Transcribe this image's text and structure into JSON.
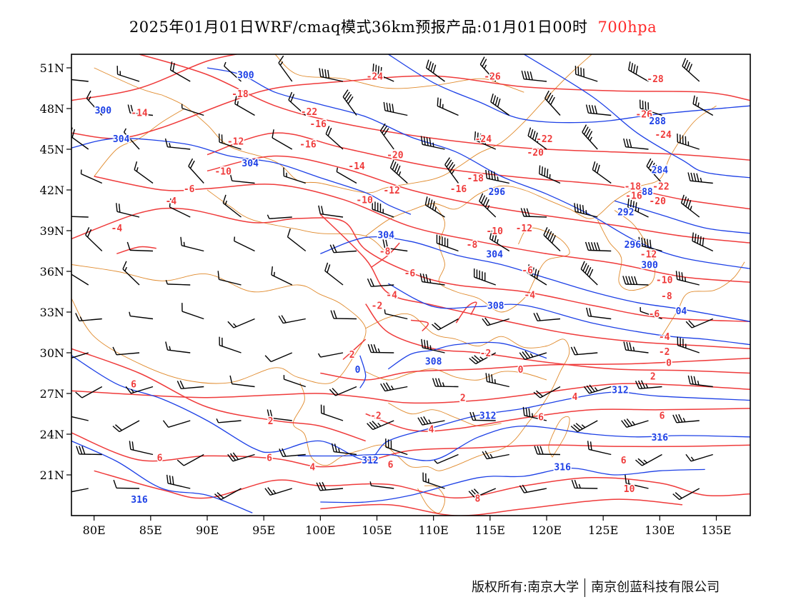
{
  "title": {
    "main": "2025年01月01日WRF/cmaq模式36km预报产品:01月01日00时",
    "level": "700hpa"
  },
  "colors": {
    "temperature": "#ef3b3b",
    "height": "#1d40e6",
    "border": "#e08a2c",
    "wind": "#000000"
  },
  "axes": {
    "lon_labels": [
      "80E",
      "85E",
      "90E",
      "95E",
      "100E",
      "105E",
      "110E",
      "115E",
      "120E",
      "125E",
      "130E",
      "135E"
    ],
    "lat_labels": [
      "51N",
      "48N",
      "45N",
      "42N",
      "39N",
      "36N",
      "33N",
      "30N",
      "27N",
      "24N",
      "21N"
    ]
  },
  "temperature_labels": [
    {
      "text": "-24",
      "lon": 104.8,
      "lat": 50.4
    },
    {
      "text": "-26",
      "lon": 115.2,
      "lat": 50.4
    },
    {
      "text": "-28",
      "lon": 129.6,
      "lat": 50.2
    },
    {
      "text": "-18",
      "lon": 92.9,
      "lat": 49.1
    },
    {
      "text": "-14",
      "lon": 84.0,
      "lat": 47.7
    },
    {
      "text": "-22",
      "lon": 99.0,
      "lat": 47.8
    },
    {
      "text": "-16",
      "lon": 99.8,
      "lat": 46.9
    },
    {
      "text": "-26",
      "lon": 128.6,
      "lat": 47.6
    },
    {
      "text": "-24",
      "lon": 130.3,
      "lat": 46.1
    },
    {
      "text": "-12",
      "lon": 92.5,
      "lat": 45.6
    },
    {
      "text": "-16",
      "lon": 98.9,
      "lat": 45.4
    },
    {
      "text": "-20",
      "lon": 106.6,
      "lat": 44.6
    },
    {
      "text": "-24",
      "lon": 114.4,
      "lat": 45.8
    },
    {
      "text": "-22",
      "lon": 119.8,
      "lat": 45.8
    },
    {
      "text": "-20",
      "lon": 119.0,
      "lat": 44.8
    },
    {
      "text": "-10",
      "lon": 91.4,
      "lat": 43.4
    },
    {
      "text": "-14",
      "lon": 103.2,
      "lat": 43.8
    },
    {
      "text": "-18",
      "lon": 113.7,
      "lat": 42.9
    },
    {
      "text": "-16",
      "lon": 112.2,
      "lat": 42.1
    },
    {
      "text": "-12",
      "lon": 106.3,
      "lat": 42.0
    },
    {
      "text": "-10",
      "lon": 103.9,
      "lat": 41.3
    },
    {
      "text": "-6",
      "lon": 88.4,
      "lat": 42.1
    },
    {
      "text": "-4",
      "lon": 86.8,
      "lat": 41.2
    },
    {
      "text": "-4",
      "lon": 82.0,
      "lat": 39.2
    },
    {
      "text": "-18",
      "lon": 127.6,
      "lat": 42.3
    },
    {
      "text": "-16",
      "lon": 127.7,
      "lat": 41.6
    },
    {
      "text": "-22",
      "lon": 130.1,
      "lat": 42.3
    },
    {
      "text": "-20",
      "lon": 129.8,
      "lat": 41.2
    },
    {
      "text": "-10",
      "lon": 115.4,
      "lat": 39.0
    },
    {
      "text": "-12",
      "lon": 118.0,
      "lat": 39.2
    },
    {
      "text": "-8",
      "lon": 113.4,
      "lat": 38.0
    },
    {
      "text": "-8",
      "lon": 105.7,
      "lat": 37.5
    },
    {
      "text": "-12",
      "lon": 129.0,
      "lat": 37.3
    },
    {
      "text": "-6",
      "lon": 107.9,
      "lat": 35.9
    },
    {
      "text": "-6",
      "lon": 118.3,
      "lat": 36.1
    },
    {
      "text": "-10",
      "lon": 130.4,
      "lat": 35.4
    },
    {
      "text": "-4",
      "lon": 106.3,
      "lat": 34.3
    },
    {
      "text": "-4",
      "lon": 118.5,
      "lat": 34.3
    },
    {
      "text": "-8",
      "lon": 130.6,
      "lat": 34.2
    },
    {
      "text": "-2",
      "lon": 105.0,
      "lat": 33.5
    },
    {
      "text": "-6",
      "lon": 129.5,
      "lat": 32.9
    },
    {
      "text": "-4",
      "lon": 130.4,
      "lat": 31.2
    },
    {
      "text": "2",
      "lon": 102.8,
      "lat": 29.9
    },
    {
      "text": "-2",
      "lon": 114.6,
      "lat": 30.0
    },
    {
      "text": "-2",
      "lon": 130.4,
      "lat": 30.1
    },
    {
      "text": "0",
      "lon": 117.7,
      "lat": 28.8
    },
    {
      "text": "0",
      "lon": 130.8,
      "lat": 29.3
    },
    {
      "text": "2",
      "lon": 129.4,
      "lat": 28.3
    },
    {
      "text": "6",
      "lon": 83.5,
      "lat": 27.7
    },
    {
      "text": "2",
      "lon": 112.6,
      "lat": 26.7
    },
    {
      "text": "4",
      "lon": 122.5,
      "lat": 26.8
    },
    {
      "text": "-2",
      "lon": 104.9,
      "lat": 25.4
    },
    {
      "text": "2",
      "lon": 95.6,
      "lat": 25.0
    },
    {
      "text": "4",
      "lon": 109.8,
      "lat": 24.4
    },
    {
      "text": "6",
      "lon": 119.5,
      "lat": 25.3
    },
    {
      "text": "6",
      "lon": 130.2,
      "lat": 25.4
    },
    {
      "text": "6",
      "lon": 95.5,
      "lat": 22.3
    },
    {
      "text": "6",
      "lon": 85.8,
      "lat": 22.3
    },
    {
      "text": "4",
      "lon": 99.3,
      "lat": 21.6
    },
    {
      "text": "6",
      "lon": 106.2,
      "lat": 21.8
    },
    {
      "text": "6",
      "lon": 126.8,
      "lat": 22.1
    },
    {
      "text": "8",
      "lon": 113.9,
      "lat": 19.3
    },
    {
      "text": "10",
      "lon": 127.3,
      "lat": 20.0
    }
  ],
  "height_labels": [
    {
      "text": "300",
      "lon": 93.4,
      "lat": 50.5
    },
    {
      "text": "300",
      "lon": 80.8,
      "lat": 47.9
    },
    {
      "text": "304",
      "lon": 82.4,
      "lat": 45.8
    },
    {
      "text": "304",
      "lon": 93.8,
      "lat": 44.0
    },
    {
      "text": "288",
      "lon": 129.8,
      "lat": 47.1
    },
    {
      "text": "284",
      "lon": 130.0,
      "lat": 43.5
    },
    {
      "text": "296",
      "lon": 115.6,
      "lat": 41.9
    },
    {
      "text": "88",
      "lon": 128.9,
      "lat": 41.9
    },
    {
      "text": "292",
      "lon": 127.0,
      "lat": 40.4
    },
    {
      "text": "304",
      "lon": 105.8,
      "lat": 38.7
    },
    {
      "text": "296",
      "lon": 127.6,
      "lat": 38.0
    },
    {
      "text": "304",
      "lon": 115.4,
      "lat": 37.3
    },
    {
      "text": "300",
      "lon": 129.1,
      "lat": 36.5
    },
    {
      "text": "308",
      "lon": 115.5,
      "lat": 33.5
    },
    {
      "text": "04",
      "lon": 131.9,
      "lat": 33.1
    },
    {
      "text": "308",
      "lon": 110.0,
      "lat": 29.4
    },
    {
      "text": "0",
      "lon": 103.3,
      "lat": 28.8
    },
    {
      "text": "312",
      "lon": 126.5,
      "lat": 27.3
    },
    {
      "text": "312",
      "lon": 114.8,
      "lat": 25.4
    },
    {
      "text": "316",
      "lon": 130.0,
      "lat": 23.8
    },
    {
      "text": "312",
      "lon": 104.4,
      "lat": 22.1
    },
    {
      "text": "316",
      "lon": 121.4,
      "lat": 21.6
    },
    {
      "text": "316",
      "lon": 84.0,
      "lat": 19.2
    }
  ]
}
